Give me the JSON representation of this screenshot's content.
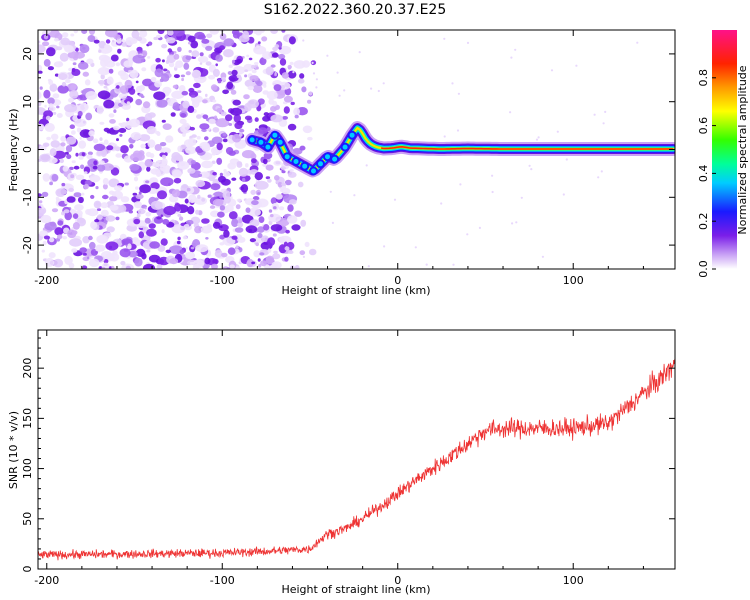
{
  "title": "S162.2022.360.20.37.E25",
  "chart_data": [
    {
      "type": "heatmap",
      "xlabel": "Height of straight line (km)",
      "ylabel": "Frequency (Hz)",
      "xlim": [
        -205,
        158
      ],
      "ylim": [
        -25,
        25
      ],
      "x_ticks": [
        -200,
        -100,
        0,
        100
      ],
      "y_ticks": [
        -20,
        -10,
        0,
        10,
        20
      ],
      "colorbar": {
        "label": "Normalized spectral amplitude",
        "range": [
          0,
          1
        ],
        "ticks": [
          0.0,
          0.2,
          0.4,
          0.6,
          0.8
        ],
        "colormap": "rainbow (white/purple → blue → cyan → green → yellow → red → magenta)"
      },
      "noise_region_x": [
        -205,
        -60
      ],
      "signal_trace": {
        "x": [
          -83,
          -78,
          -74,
          -70,
          -67,
          -63,
          -58,
          -53,
          -48,
          -44,
          -40,
          -36,
          -30,
          -26,
          -23,
          -21,
          -18,
          -15,
          -12,
          -8,
          -3,
          2,
          7,
          15,
          25,
          40,
          60,
          100,
          158
        ],
        "freq": [
          2,
          1.5,
          0.5,
          3,
          1.5,
          -1.5,
          -2.5,
          -3.5,
          -4.5,
          -3,
          -1.5,
          -2,
          0.5,
          3,
          4.5,
          4,
          2,
          1,
          0.5,
          0.2,
          0.3,
          0.6,
          0.3,
          0.2,
          0.1,
          0.2,
          0.1,
          0.1,
          0.1
        ]
      },
      "grid": false
    },
    {
      "type": "line",
      "xlabel": "Height of straight line (km)",
      "ylabel": "SNR (10 * v/v)",
      "xlim": [
        -205,
        158
      ],
      "ylim": [
        0,
        238
      ],
      "x_ticks": [
        -200,
        -100,
        0,
        100
      ],
      "y_ticks": [
        0,
        50,
        100,
        150,
        200
      ],
      "color": "#ee3333",
      "trend": {
        "x": [
          -205,
          -150,
          -100,
          -70,
          -50,
          -45,
          -40,
          -30,
          -20,
          -10,
          0,
          10,
          20,
          30,
          40,
          50,
          60,
          80,
          100,
          120,
          130,
          140,
          150,
          158
        ],
        "y": [
          14,
          15,
          16,
          18,
          20,
          28,
          35,
          40,
          50,
          62,
          75,
          88,
          100,
          112,
          125,
          138,
          140,
          140,
          140,
          145,
          160,
          175,
          190,
          205
        ]
      },
      "noise_amplitude": 12,
      "grid": false
    }
  ]
}
